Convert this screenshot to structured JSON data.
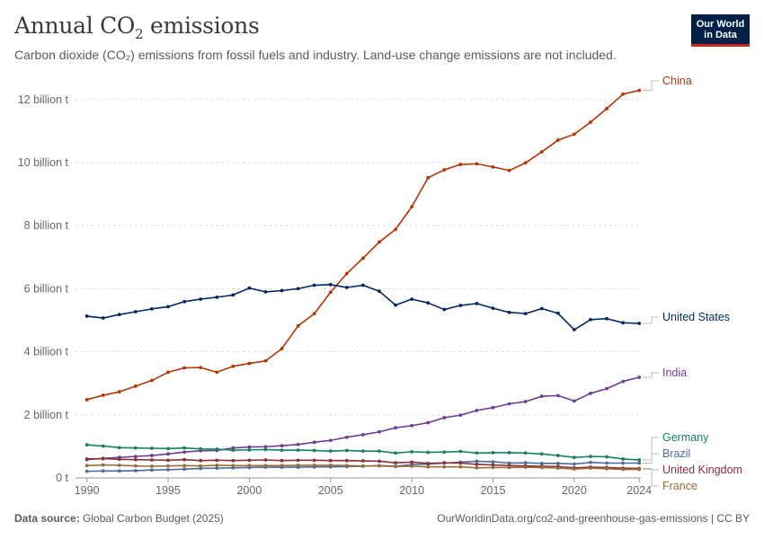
{
  "header": {
    "title_main": "Annual CO",
    "title_sub": "2",
    "title_rest": " emissions",
    "subtitle": "Carbon dioxide (CO₂) emissions from fossil fuels and industry. Land-use change emissions are not included.",
    "logo_line1": "Our World",
    "logo_line2": "in Data"
  },
  "footer": {
    "source_label": "Data source:",
    "source_text": " Global Carbon Budget (2025)",
    "url": "OurWorldinData.org/co2-and-greenhouse-gas-emissions | CC BY"
  },
  "chart_data": {
    "type": "line",
    "title": "Annual CO₂ emissions",
    "ylabel": "",
    "xlabel": "",
    "ylim": [
      0,
      12300000000
    ],
    "xlim": [
      1989,
      2025
    ],
    "y_ticks": [
      {
        "value": 0,
        "label": "0 t"
      },
      {
        "value": 2000000000,
        "label": "2 billion t"
      },
      {
        "value": 4000000000,
        "label": "4 billion t"
      },
      {
        "value": 6000000000,
        "label": "6 billion t"
      },
      {
        "value": 8000000000,
        "label": "8 billion t"
      },
      {
        "value": 10000000000,
        "label": "10 billion t"
      },
      {
        "value": 12000000000,
        "label": "12 billion t"
      }
    ],
    "x_ticks": [
      1990,
      1995,
      2000,
      2005,
      2010,
      2015,
      2020,
      2024
    ],
    "grid": "horizontal dashed",
    "legend": "right (inline labels)",
    "x": [
      1990,
      1991,
      1992,
      1993,
      1994,
      1995,
      1996,
      1997,
      1998,
      1999,
      2000,
      2001,
      2002,
      2003,
      2004,
      2005,
      2006,
      2007,
      2008,
      2009,
      2010,
      2011,
      2012,
      2013,
      2014,
      2015,
      2016,
      2017,
      2018,
      2019,
      2020,
      2021,
      2022,
      2023,
      2024
    ],
    "series": [
      {
        "name": "China",
        "color": "#b13507",
        "values": [
          2.48,
          2.62,
          2.73,
          2.91,
          3.09,
          3.35,
          3.49,
          3.5,
          3.35,
          3.54,
          3.63,
          3.71,
          4.1,
          4.82,
          5.21,
          5.89,
          6.48,
          6.97,
          7.48,
          7.88,
          8.6,
          9.52,
          9.77,
          9.94,
          9.96,
          9.86,
          9.75,
          9.99,
          10.34,
          10.71,
          10.9,
          11.28,
          11.71,
          12.17,
          12.29
        ]
      },
      {
        "name": "United States",
        "color": "#00295b",
        "values": [
          5.13,
          5.07,
          5.18,
          5.27,
          5.36,
          5.43,
          5.59,
          5.67,
          5.73,
          5.8,
          6.02,
          5.9,
          5.94,
          6.0,
          6.11,
          6.13,
          6.04,
          6.11,
          5.92,
          5.48,
          5.67,
          5.55,
          5.34,
          5.47,
          5.53,
          5.38,
          5.25,
          5.21,
          5.37,
          5.22,
          4.7,
          5.02,
          5.05,
          4.92,
          4.9
        ]
      },
      {
        "name": "India",
        "color": "#6d3e91",
        "values": [
          0.58,
          0.62,
          0.65,
          0.68,
          0.71,
          0.76,
          0.82,
          0.86,
          0.87,
          0.95,
          0.98,
          0.99,
          1.02,
          1.06,
          1.13,
          1.19,
          1.29,
          1.37,
          1.46,
          1.59,
          1.66,
          1.75,
          1.91,
          1.99,
          2.14,
          2.23,
          2.35,
          2.42,
          2.59,
          2.61,
          2.44,
          2.68,
          2.83,
          3.06,
          3.19
        ]
      },
      {
        "name": "Germany",
        "color": "#18805e",
        "values": [
          1.05,
          1.01,
          0.96,
          0.95,
          0.94,
          0.93,
          0.95,
          0.92,
          0.91,
          0.88,
          0.89,
          0.9,
          0.88,
          0.88,
          0.87,
          0.85,
          0.87,
          0.85,
          0.85,
          0.79,
          0.83,
          0.81,
          0.82,
          0.84,
          0.79,
          0.8,
          0.8,
          0.79,
          0.76,
          0.71,
          0.65,
          0.68,
          0.67,
          0.6,
          0.57
        ]
      },
      {
        "name": "Brazil",
        "color": "#4c6a9c",
        "values": [
          0.21,
          0.22,
          0.22,
          0.23,
          0.25,
          0.26,
          0.28,
          0.3,
          0.31,
          0.32,
          0.33,
          0.34,
          0.34,
          0.34,
          0.35,
          0.35,
          0.36,
          0.37,
          0.39,
          0.37,
          0.42,
          0.44,
          0.47,
          0.5,
          0.53,
          0.51,
          0.47,
          0.48,
          0.46,
          0.46,
          0.44,
          0.49,
          0.47,
          0.47,
          0.47
        ]
      },
      {
        "name": "United Kingdom",
        "color": "#883039",
        "values": [
          0.6,
          0.61,
          0.59,
          0.58,
          0.57,
          0.56,
          0.58,
          0.55,
          0.56,
          0.55,
          0.56,
          0.57,
          0.55,
          0.56,
          0.56,
          0.55,
          0.55,
          0.54,
          0.53,
          0.48,
          0.5,
          0.46,
          0.48,
          0.47,
          0.43,
          0.41,
          0.39,
          0.38,
          0.37,
          0.36,
          0.32,
          0.34,
          0.33,
          0.31,
          0.3
        ]
      },
      {
        "name": "France",
        "color": "#996d39",
        "values": [
          0.39,
          0.41,
          0.4,
          0.38,
          0.37,
          0.38,
          0.39,
          0.38,
          0.4,
          0.39,
          0.39,
          0.39,
          0.39,
          0.4,
          0.4,
          0.4,
          0.39,
          0.38,
          0.38,
          0.36,
          0.37,
          0.35,
          0.35,
          0.35,
          0.32,
          0.33,
          0.33,
          0.34,
          0.33,
          0.31,
          0.28,
          0.31,
          0.29,
          0.27,
          0.27
        ]
      }
    ]
  }
}
